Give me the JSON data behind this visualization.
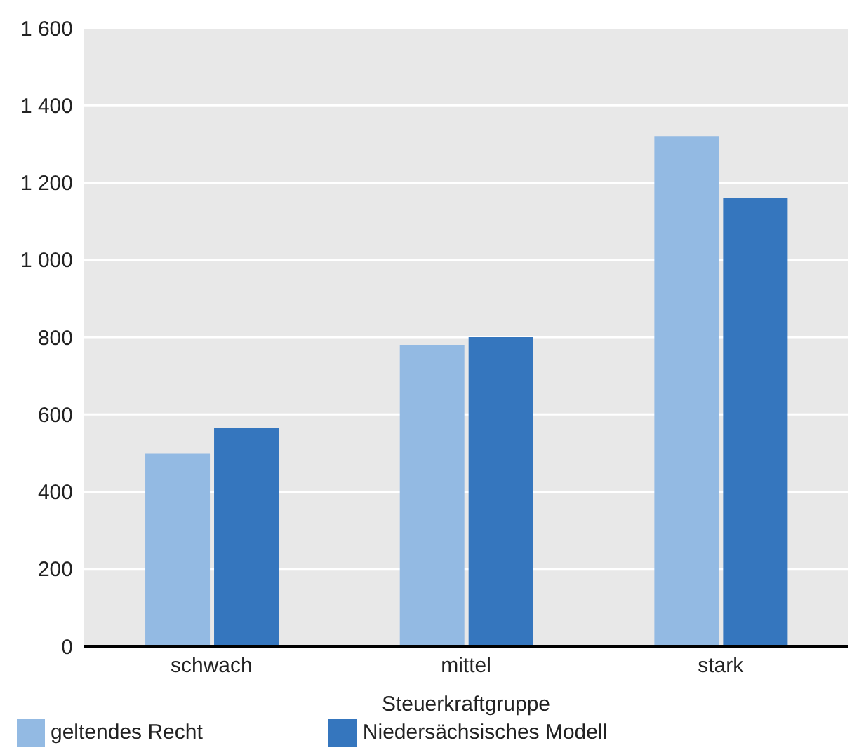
{
  "chart_data": {
    "type": "bar",
    "xlabel": "Steuerkraftgruppe",
    "categories": [
      "schwach",
      "mittel",
      "stark"
    ],
    "series": [
      {
        "name": "geltendes Recht",
        "color": "#93bae3",
        "values": [
          500,
          780,
          1320
        ]
      },
      {
        "name": "Niedersächsisches Modell",
        "color": "#3576be",
        "values": [
          565,
          800,
          1160
        ]
      }
    ],
    "ylim": [
      0,
      1600
    ],
    "yticks": [
      {
        "value": 0,
        "label": "0"
      },
      {
        "value": 200,
        "label": "200"
      },
      {
        "value": 400,
        "label": "400"
      },
      {
        "value": 600,
        "label": "600"
      },
      {
        "value": 800,
        "label": "800"
      },
      {
        "value": 1000,
        "label": "1 000"
      },
      {
        "value": 1200,
        "label": "1 200"
      },
      {
        "value": 1400,
        "label": "1 400"
      },
      {
        "value": 1600,
        "label": "1 600"
      }
    ],
    "grid": "y",
    "legend": "bottom left"
  }
}
